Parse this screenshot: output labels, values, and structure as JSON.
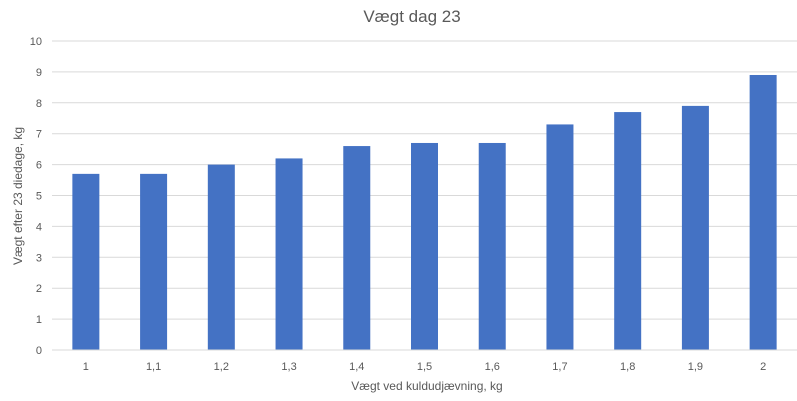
{
  "chart_data": {
    "type": "bar",
    "title": "Vægt dag 23",
    "xlabel": "Vægt ved kuldudjævning, kg",
    "ylabel": "Vægt efter 23 diedage, kg",
    "categories": [
      "1",
      "1,1",
      "1,2",
      "1,3",
      "1,4",
      "1,5",
      "1,6",
      "1,7",
      "1,8",
      "1,9",
      "2"
    ],
    "values": [
      5.7,
      5.7,
      6.0,
      6.2,
      6.6,
      6.7,
      6.7,
      7.3,
      7.7,
      7.9,
      8.9
    ],
    "ylim": [
      0,
      10
    ],
    "yticks": [
      "0",
      "1",
      "2",
      "3",
      "4",
      "5",
      "6",
      "7",
      "8",
      "9",
      "10"
    ],
    "grid": true,
    "legend": "none",
    "bar_color": "#4472c4"
  }
}
